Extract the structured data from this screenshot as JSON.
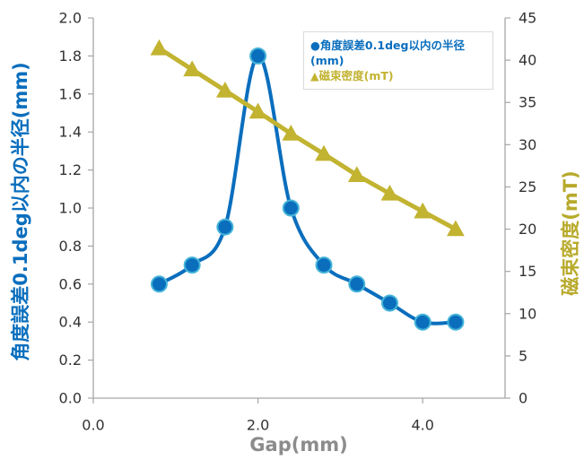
{
  "chart_data": {
    "type": "line",
    "x": [
      0.8,
      1.2,
      1.6,
      2.0,
      2.4,
      2.8,
      3.2,
      3.6,
      4.0,
      4.4
    ],
    "series": [
      {
        "name": "角度誤差0.1deg以内の半径(mm)",
        "axis": "left",
        "values": [
          0.6,
          0.7,
          0.9,
          1.8,
          1.0,
          0.7,
          0.6,
          0.5,
          0.4,
          0.4
        ],
        "marker": "circle",
        "smooth": true,
        "color": "#0a6ebd",
        "marker_edge": "#45b4d8"
      },
      {
        "name": "磁束密度(mT)",
        "axis": "right",
        "values": [
          41.4,
          38.9,
          36.4,
          33.9,
          31.3,
          28.9,
          26.4,
          24.2,
          22.1,
          20.0
        ],
        "marker": "triangle",
        "smooth": false,
        "color": "#c2b331"
      }
    ],
    "xlabel": "Gap(mm)",
    "ylabel": "角度誤差0.1deg以内の半径(mm)",
    "y2label": "磁束密度(mT)",
    "xlim": [
      0,
      5
    ],
    "ylim": [
      0,
      2.0
    ],
    "y2lim": [
      0,
      45
    ],
    "x_ticks": [
      "0.0",
      "2.0",
      "4.0"
    ],
    "y_ticks": [
      "0.0",
      "0.2",
      "0.4",
      "0.6",
      "0.8",
      "1.0",
      "1.2",
      "1.4",
      "1.6",
      "1.8",
      "2.0"
    ],
    "y2_ticks": [
      "0",
      "5",
      "10",
      "15",
      "20",
      "25",
      "30",
      "35",
      "40",
      "45"
    ],
    "grid": false,
    "legend": {
      "position": "top-right",
      "markers": [
        "●",
        "▲"
      ]
    },
    "colors": {
      "axis_line": "#a6a6a6",
      "xlabel": "#8c8c8c",
      "ylabel": "#0a6ebd",
      "y2label": "#b8aa2c"
    }
  }
}
